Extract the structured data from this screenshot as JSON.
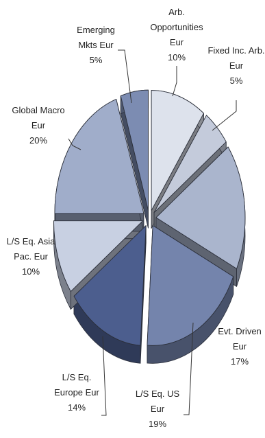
{
  "chart_data": {
    "type": "pie",
    "title": "",
    "style": "exploded-3d",
    "slices": [
      {
        "label": [
          "Arb.",
          "Opportunities",
          "Eur"
        ],
        "value": 10,
        "value_label": "10%",
        "color": "#dde2ec"
      },
      {
        "label": [
          "Fixed Inc. Arb.",
          "Eur"
        ],
        "value": 5,
        "value_label": "5%",
        "color": "#c4cbdb"
      },
      {
        "label": [
          "Evt. Driven",
          "Eur"
        ],
        "value": 17,
        "value_label": "17%",
        "color": "#aab5cd"
      },
      {
        "label": [
          "L/S Eq. US",
          "Eur"
        ],
        "value": 19,
        "value_label": "19%",
        "color": "#7484ac"
      },
      {
        "label": [
          "L/S Eq.",
          "Europe Eur"
        ],
        "value": 14,
        "value_label": "14%",
        "color": "#4c5e8e"
      },
      {
        "label": [
          "L/S Eq. Asia",
          "Pac. Eur"
        ],
        "value": 10,
        "value_label": "10%",
        "color": "#c8d0e2"
      },
      {
        "label": [
          "Global Macro",
          "Eur"
        ],
        "value": 20,
        "value_label": "20%",
        "color": "#a0adca"
      },
      {
        "label": [
          "Emerging",
          "Mkts Eur"
        ],
        "value": 5,
        "value_label": "5%",
        "color": "#7c8cb2"
      }
    ]
  }
}
